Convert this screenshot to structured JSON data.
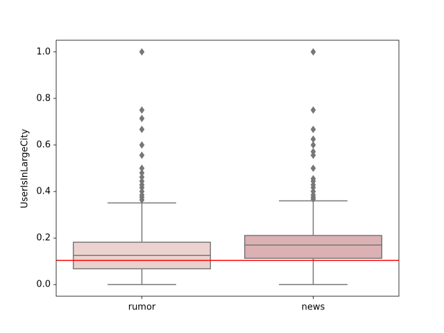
{
  "chart_data": {
    "type": "box",
    "y_label": "UserIsInLargeCity",
    "categories": [
      "rumor",
      "news"
    ],
    "boxes": [
      {
        "whislo": 0,
        "q1": 0.068,
        "median": 0.125,
        "q3": 0.182,
        "whishi": 0.351,
        "color": "#ecd2cf",
        "outliers": [
          1.0,
          0.75,
          0.714,
          0.667,
          0.6,
          0.556,
          0.5,
          0.48,
          0.462,
          0.444,
          0.429,
          0.417,
          0.4,
          0.385,
          0.375,
          0.364
        ]
      },
      {
        "whislo": 0,
        "q1": 0.113,
        "median": 0.17,
        "q3": 0.211,
        "whishi": 0.36,
        "color": "#dcb1b4",
        "outliers": [
          1.0,
          0.75,
          0.667,
          0.625,
          0.6,
          0.571,
          0.556,
          0.5,
          0.455,
          0.444,
          0.429,
          0.417,
          0.4,
          0.385,
          0.375,
          0.367
        ]
      }
    ],
    "line_color": "#777777",
    "hline": {
      "value": 0.104,
      "color": "#ff0000"
    },
    "ylim": [
      -0.05,
      1.05
    ],
    "yticks": [
      {
        "value": 0.0,
        "label": "0.0"
      },
      0.2,
      0.4,
      0.6,
      0.8,
      {
        "value": 1.0,
        "label": "1.0"
      }
    ]
  }
}
